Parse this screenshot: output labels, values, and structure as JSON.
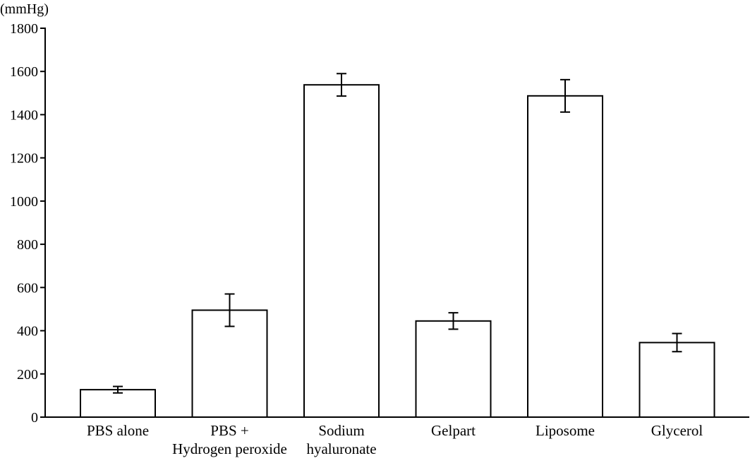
{
  "chart_data": {
    "type": "bar",
    "title": "",
    "xlabel": "",
    "ylabel": "(mmHg)",
    "ylim": [
      0,
      1800
    ],
    "yticks": [
      0,
      200,
      400,
      600,
      800,
      1000,
      1200,
      1400,
      1600,
      1800
    ],
    "categories": [
      [
        "PBS alone"
      ],
      [
        "PBS +",
        "Hydrogen peroxide"
      ],
      [
        "Sodium",
        "hyaluronate"
      ],
      [
        "Gelpart"
      ],
      [
        "Liposome"
      ],
      [
        "Glycerol"
      ]
    ],
    "values": [
      127,
      495,
      1538,
      445,
      1487,
      345
    ],
    "errors": [
      15,
      75,
      52,
      38,
      75,
      42
    ],
    "grid": false,
    "legend": "none",
    "colors": {
      "bar_fill": "#ffffff",
      "bar_stroke": "#000000",
      "axis": "#000000"
    }
  }
}
